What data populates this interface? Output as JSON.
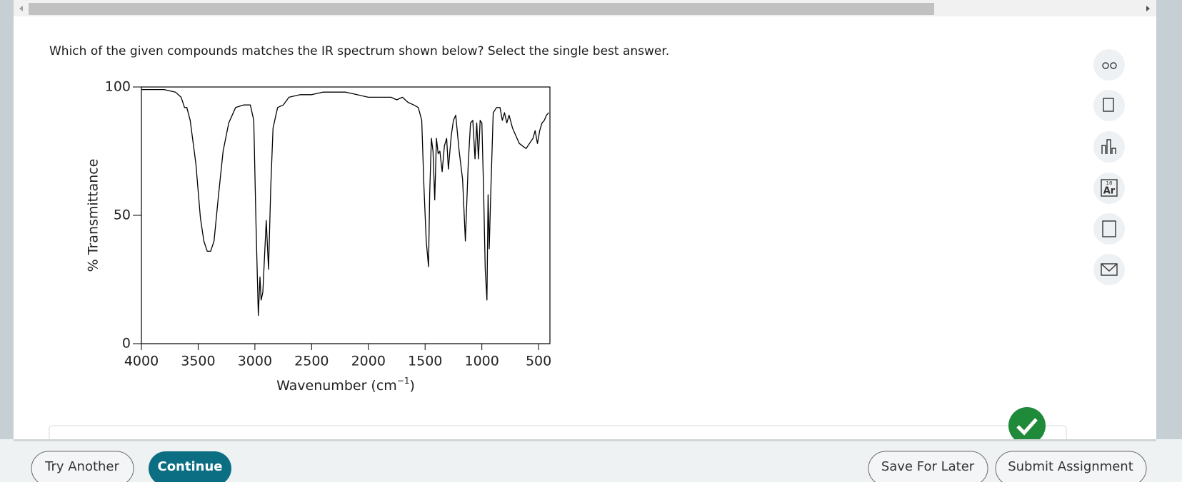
{
  "question": "Which of the given compounds matches the IR spectrum shown below? Select the single best answer.",
  "chart_data": {
    "type": "line",
    "xlabel": [
      "Wavenumber (cm",
      "−1",
      ")"
    ],
    "ylabel": "% Transmittance",
    "x": [
      4000,
      3900,
      3800,
      3700,
      3650,
      3620,
      3600,
      3570,
      3520,
      3480,
      3450,
      3420,
      3390,
      3360,
      3320,
      3280,
      3230,
      3170,
      3100,
      3040,
      3010,
      2990,
      2970,
      2955,
      2945,
      2930,
      2900,
      2880,
      2860,
      2840,
      2800,
      2750,
      2700,
      2600,
      2500,
      2400,
      2300,
      2200,
      2100,
      2000,
      1900,
      1800,
      1750,
      1700,
      1650,
      1600,
      1560,
      1530,
      1510,
      1490,
      1470,
      1460,
      1445,
      1430,
      1415,
      1400,
      1385,
      1370,
      1350,
      1330,
      1310,
      1295,
      1270,
      1250,
      1230,
      1200,
      1170,
      1145,
      1120,
      1100,
      1080,
      1060,
      1045,
      1030,
      1015,
      1000,
      985,
      970,
      955,
      945,
      935,
      920,
      900,
      870,
      840,
      820,
      800,
      780,
      760,
      730,
      700,
      670,
      640,
      610,
      580,
      550,
      530,
      510,
      490,
      470,
      450,
      430,
      410
    ],
    "values": [
      99,
      99,
      99,
      98,
      96,
      92,
      92,
      87,
      70,
      49,
      40,
      36,
      36,
      40,
      58,
      75,
      86,
      92,
      93,
      93,
      87,
      46,
      11,
      26,
      17,
      20,
      48,
      29,
      61,
      84,
      92,
      93,
      96,
      97,
      97,
      98,
      98,
      98,
      97,
      96,
      96,
      96,
      95,
      96,
      94,
      93,
      92,
      87,
      61,
      40,
      30,
      58,
      80,
      75,
      56,
      80,
      74,
      75,
      67,
      77,
      80,
      68,
      81,
      87,
      89,
      75,
      64,
      40,
      70,
      86,
      87,
      72,
      86,
      72,
      87,
      86,
      61,
      29,
      17,
      58,
      37,
      61,
      90,
      92,
      92,
      87,
      90,
      86,
      89,
      84,
      81,
      78,
      77,
      76,
      78,
      80,
      83,
      78,
      83,
      86,
      87,
      89,
      90
    ],
    "color": "#000000",
    "xlim": [
      4000,
      400
    ],
    "ylim": [
      0,
      100
    ],
    "xticks": [
      4000,
      3500,
      3000,
      2500,
      2000,
      1500,
      1000,
      500
    ],
    "yticks": [
      0,
      50,
      100
    ]
  },
  "tools": {
    "periodic_number": "18",
    "periodic_symbol": "Ar"
  },
  "buttons": {
    "try_another": "Try Another",
    "continue": "Continue",
    "save": "Save For Later",
    "submit": "Submit Assignment"
  }
}
